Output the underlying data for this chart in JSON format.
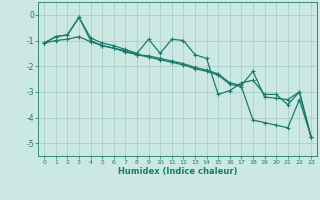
{
  "xlabel": "Humidex (Indice chaleur)",
  "xlim": [
    -0.5,
    23.5
  ],
  "ylim": [
    -5.5,
    0.5
  ],
  "yticks": [
    0,
    -1,
    -2,
    -3,
    -4,
    -5
  ],
  "xticks": [
    0,
    1,
    2,
    3,
    4,
    5,
    6,
    7,
    8,
    9,
    10,
    11,
    12,
    13,
    14,
    15,
    16,
    17,
    18,
    19,
    20,
    21,
    22,
    23
  ],
  "bg_color": "#cce8e2",
  "grid_color": "#aacfc8",
  "line_color": "#1a7a6e",
  "line1_x": [
    0,
    1,
    2,
    3,
    4,
    5,
    6,
    7,
    8,
    9,
    10,
    11,
    12,
    13,
    14,
    15,
    16,
    17,
    18,
    19,
    20,
    21,
    22,
    23
  ],
  "line1_y": [
    -1.1,
    -0.85,
    -0.78,
    -0.1,
    -0.9,
    -1.1,
    -1.2,
    -1.35,
    -1.5,
    -0.95,
    -1.5,
    -0.95,
    -1.0,
    -1.55,
    -1.7,
    -3.1,
    -2.95,
    -2.65,
    -2.55,
    -3.1,
    -3.1,
    -3.5,
    -3.0,
    -4.75
  ],
  "line2_x": [
    0,
    1,
    2,
    3,
    4,
    5,
    6,
    7,
    8,
    9,
    10,
    11,
    12,
    13,
    14,
    15,
    16,
    17,
    18,
    19,
    20,
    21,
    22,
    23
  ],
  "line2_y": [
    -1.1,
    -0.85,
    -0.78,
    -0.1,
    -1.0,
    -1.2,
    -1.3,
    -1.45,
    -1.55,
    -1.6,
    -1.7,
    -1.8,
    -1.9,
    -2.05,
    -2.15,
    -2.3,
    -2.65,
    -2.75,
    -2.2,
    -3.2,
    -3.25,
    -3.3,
    -3.0,
    -4.75
  ],
  "line3_x": [
    0,
    1,
    2,
    3,
    4,
    5,
    6,
    7,
    8,
    9,
    10,
    11,
    12,
    13,
    14,
    15,
    16,
    17,
    18,
    19,
    20,
    21,
    22,
    23
  ],
  "line3_y": [
    -1.1,
    -1.0,
    -0.95,
    -0.85,
    -1.05,
    -1.2,
    -1.3,
    -1.4,
    -1.55,
    -1.65,
    -1.75,
    -1.85,
    -1.95,
    -2.1,
    -2.2,
    -2.35,
    -2.7,
    -2.8,
    -4.1,
    -4.2,
    -4.3,
    -4.4,
    -3.3,
    -4.75
  ]
}
